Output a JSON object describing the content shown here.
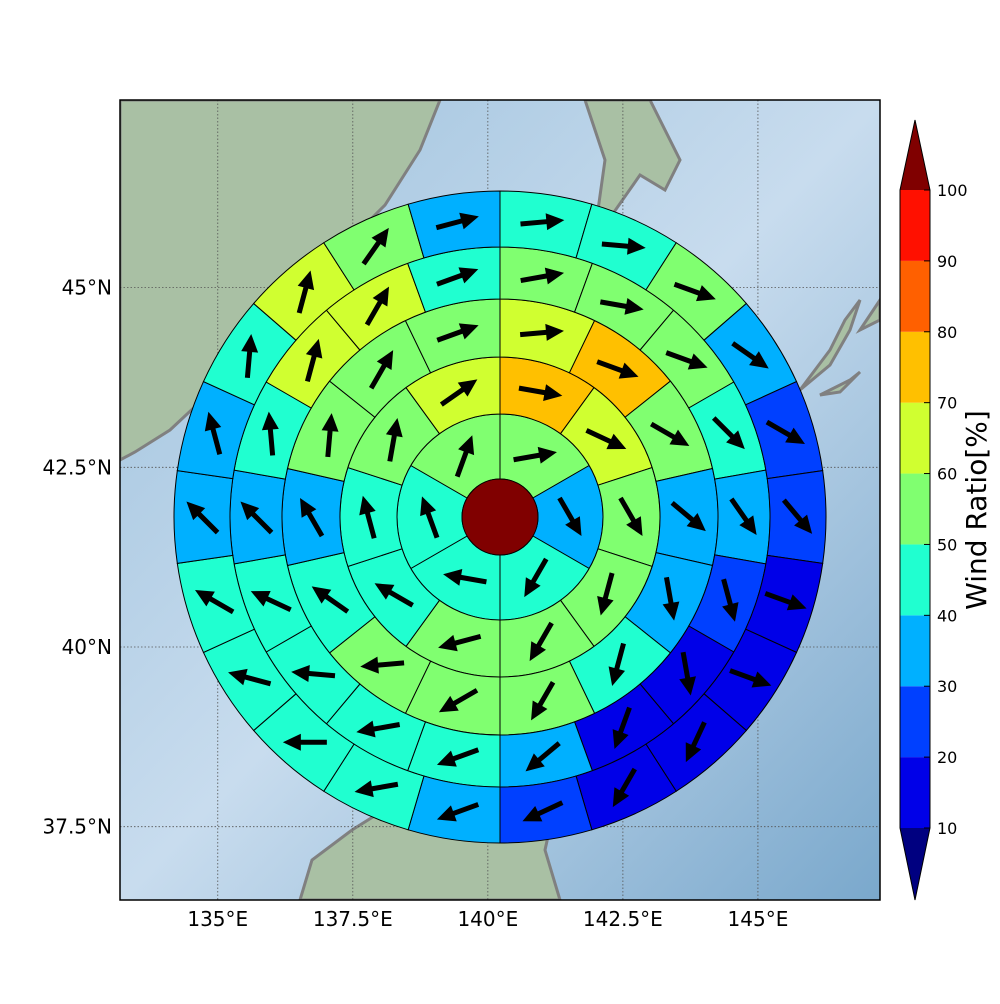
{
  "chart_data": {
    "type": "wind_ratio_map",
    "xlim": [
      133.19,
      147.26
    ],
    "ylim": [
      36.48,
      47.61
    ],
    "xticks": [
      {
        "value": 135,
        "label": "135°E"
      },
      {
        "value": 137.5,
        "label": "137.5°E"
      },
      {
        "value": 140,
        "label": "140°E"
      },
      {
        "value": 142.5,
        "label": "142.5°E"
      },
      {
        "value": 145,
        "label": "145°E"
      }
    ],
    "yticks": [
      {
        "value": 37.5,
        "label": "37.5°N"
      },
      {
        "value": 40,
        "label": "40°N"
      },
      {
        "value": 42.5,
        "label": "42.5°N"
      },
      {
        "value": 45,
        "label": "45°N"
      }
    ],
    "grid": true,
    "colorbar": {
      "label": "Wind Ratio[%]",
      "ticks": [
        10,
        20,
        30,
        40,
        50,
        60,
        70,
        80,
        90,
        100
      ],
      "colors": [
        "#0000e8",
        "#0040ff",
        "#00b0ff",
        "#20ffd0",
        "#80ff70",
        "#d0ff30",
        "#ffc000",
        "#ff6000",
        "#ff1000"
      ],
      "under_color": "#000080",
      "over_color": "#800000"
    },
    "rings": [
      {
        "values": [
          55,
          35,
          45,
          45,
          45,
          55
        ],
        "directions": [
          80,
          150,
          210,
          280,
          340,
          20
        ]
      },
      {
        "values": [
          75,
          65,
          55,
          55,
          55,
          55,
          45,
          45,
          55,
          65
        ],
        "directions": [
          100,
          115,
          150,
          195,
          210,
          255,
          300,
          345,
          10,
          55
        ]
      },
      {
        "values": [
          65,
          75,
          55,
          35,
          35,
          45,
          55,
          55,
          55,
          45,
          35,
          55,
          55,
          55
        ],
        "directions": [
          85,
          110,
          120,
          130,
          170,
          195,
          210,
          240,
          265,
          305,
          330,
          5,
          30,
          70
        ]
      },
      {
        "values": [
          55,
          55,
          55,
          45,
          35,
          25,
          15,
          15,
          35,
          45,
          45,
          45,
          45,
          35,
          45,
          65,
          65,
          45
        ],
        "directions": [
          80,
          100,
          110,
          135,
          145,
          165,
          170,
          200,
          230,
          250,
          260,
          275,
          295,
          315,
          355,
          15,
          30,
          70
        ]
      },
      {
        "values": [
          45,
          45,
          55,
          35,
          25,
          25,
          15,
          15,
          15,
          15,
          25,
          35,
          45,
          45,
          45,
          45,
          35,
          35,
          45,
          65,
          55,
          35
        ],
        "directions": [
          85,
          95,
          110,
          125,
          120,
          140,
          110,
          110,
          205,
          210,
          245,
          250,
          260,
          270,
          285,
          300,
          315,
          345,
          5,
          15,
          35,
          75
        ]
      }
    ]
  }
}
